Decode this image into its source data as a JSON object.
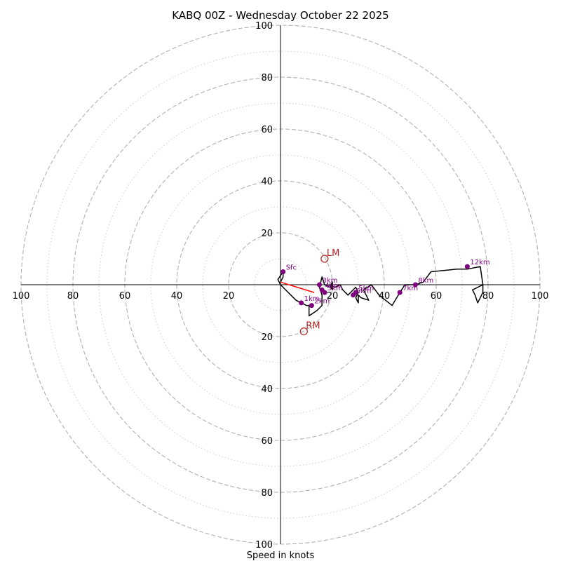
{
  "chart_data": {
    "type": "hodograph",
    "title": "KABQ 00Z - Wednesday October 22 2025",
    "xlabel": "Speed in knots",
    "units": "kt",
    "range": [
      -100,
      100
    ],
    "rings_major": [
      20,
      40,
      60,
      80,
      100
    ],
    "rings_minor": [
      10,
      30,
      50,
      70,
      90
    ],
    "tick_values": [
      100,
      80,
      60,
      40,
      20
    ],
    "x_ticks": [
      "100",
      "80",
      "60",
      "40",
      "20",
      "20",
      "40",
      "60",
      "80",
      "100"
    ],
    "y_ticks_top": [
      "100",
      "80",
      "60",
      "40",
      "20"
    ],
    "y_ticks_bottom": [
      "20",
      "40",
      "60",
      "80",
      "100"
    ],
    "profile": [
      [
        0,
        1
      ],
      [
        1,
        3
      ],
      [
        1,
        5
      ],
      [
        -1,
        2
      ],
      [
        0,
        0
      ],
      [
        3,
        -3
      ],
      [
        6,
        -6
      ],
      [
        8,
        -7
      ],
      [
        10,
        -8
      ],
      [
        11,
        -8
      ],
      [
        11,
        -12
      ],
      [
        14,
        -10
      ],
      [
        16,
        -8
      ],
      [
        16,
        -4
      ],
      [
        15,
        -1
      ],
      [
        16,
        3
      ],
      [
        17,
        0
      ],
      [
        19,
        -1
      ],
      [
        20,
        1
      ],
      [
        20,
        -2
      ],
      [
        19,
        0
      ],
      [
        21,
        -1
      ],
      [
        23,
        0
      ],
      [
        24,
        -2
      ],
      [
        26,
        -4
      ],
      [
        28,
        -2
      ],
      [
        29,
        -1
      ],
      [
        30,
        -3
      ],
      [
        29,
        -5
      ],
      [
        30,
        -7
      ],
      [
        30,
        -4
      ],
      [
        31,
        -5
      ],
      [
        34,
        -6
      ],
      [
        32,
        -2
      ],
      [
        35,
        0
      ],
      [
        38,
        -4
      ],
      [
        43,
        -8
      ],
      [
        46,
        -3
      ],
      [
        48,
        0
      ],
      [
        52,
        0
      ],
      [
        55,
        1
      ],
      [
        58,
        5
      ],
      [
        68,
        6
      ],
      [
        72,
        6
      ],
      [
        77,
        7
      ],
      [
        78,
        0
      ],
      [
        74,
        -2
      ],
      [
        75,
        -4
      ],
      [
        76,
        -7
      ],
      [
        78,
        -3
      ],
      [
        78,
        0
      ]
    ],
    "height_markers": [
      {
        "label": "Sfc",
        "u": 1,
        "v": 5
      },
      {
        "label": "1km",
        "u": 8,
        "v": -7
      },
      {
        "label": "2km",
        "u": 12,
        "v": -8
      },
      {
        "label": "3km",
        "u": 15,
        "v": 0
      },
      {
        "label": "4km",
        "u": 16,
        "v": -2
      },
      {
        "label": "5km",
        "u": 17,
        "v": -3
      },
      {
        "label": "6km",
        "u": 28,
        "v": -4
      },
      {
        "label": "5km",
        "u": 29,
        "v": -3
      },
      {
        "label": "7km",
        "u": 46,
        "v": -3
      },
      {
        "label": "8km",
        "u": 52,
        "v": 0
      },
      {
        "label": "12km",
        "u": 72,
        "v": 7
      }
    ],
    "storm_motion": {
      "lm": {
        "label": "LM",
        "u": 17,
        "v": 10
      },
      "rm": {
        "label": "RM",
        "u": 9,
        "v": -18
      }
    },
    "shear_vector": [
      [
        0,
        1
      ],
      [
        13,
        -3
      ]
    ],
    "colors": {
      "profile": "#000000",
      "marker": "#800080",
      "storm_motion": "#b22222",
      "shear": "#ff0000",
      "grid": "#b0b0b0"
    }
  }
}
